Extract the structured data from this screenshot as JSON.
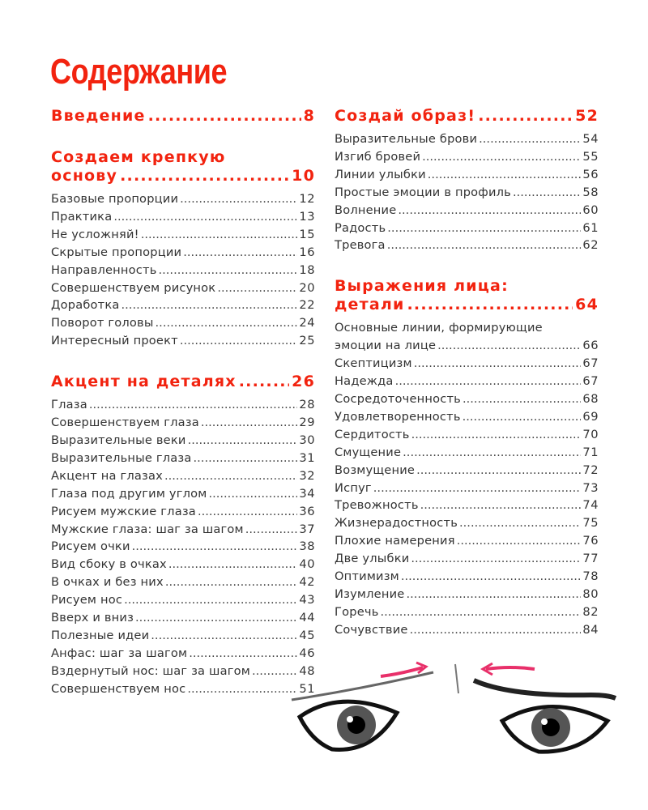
{
  "page_title": "Содержание",
  "left_column": [
    {
      "heading": [
        "Введение"
      ],
      "page": "8",
      "entries": []
    },
    {
      "heading": [
        "Создаем крепкую",
        "основу"
      ],
      "page": "10",
      "entries": [
        {
          "label": "Базовые пропорции",
          "page": "12"
        },
        {
          "label": "Практика",
          "page": "13"
        },
        {
          "label": "Не усложняй!",
          "page": "15"
        },
        {
          "label": "Скрытые пропорции",
          "page": "16"
        },
        {
          "label": "Направленность",
          "page": "18"
        },
        {
          "label": "Совершенствуем рисунок",
          "page": "20"
        },
        {
          "label": "Доработка",
          "page": "22"
        },
        {
          "label": "Поворот головы",
          "page": "24"
        },
        {
          "label": "Интересный проект",
          "page": "25"
        }
      ]
    },
    {
      "heading": [
        "Акцент на деталях"
      ],
      "page": "26",
      "entries": [
        {
          "label": "Глаза",
          "page": "28"
        },
        {
          "label": "Совершенствуем глаза",
          "page": "29"
        },
        {
          "label": "Выразительные веки",
          "page": "30"
        },
        {
          "label": "Выразительные глаза",
          "page": "31"
        },
        {
          "label": "Акцент на глазах",
          "page": "32"
        },
        {
          "label": "Глаза под другим углом",
          "page": "34"
        },
        {
          "label": "Рисуем мужские глаза",
          "page": "36"
        },
        {
          "label": "Мужские глаза: шаг за шагом",
          "page": "37"
        },
        {
          "label": "Рисуем очки",
          "page": "38"
        },
        {
          "label": "Вид сбоку в очках",
          "page": "40"
        },
        {
          "label": "В очках и без них",
          "page": "42"
        },
        {
          "label": "Рисуем нос",
          "page": "43"
        },
        {
          "label": "Вверх и вниз",
          "page": "44"
        },
        {
          "label": "Полезные идеи",
          "page": "45"
        },
        {
          "label": "Анфас: шаг за шагом",
          "page": "46"
        },
        {
          "label": "Вздернутый нос: шаг за шагом",
          "page": "48"
        },
        {
          "label": "Совершенствуем нос",
          "page": "51"
        }
      ]
    }
  ],
  "right_column": [
    {
      "heading": [
        "Создай образ!"
      ],
      "page": "52",
      "entries": [
        {
          "label": "Выразительные брови",
          "page": "54"
        },
        {
          "label": "Изгиб бровей",
          "page": "55"
        },
        {
          "label": "Линии улыбки",
          "page": "56"
        },
        {
          "label": "Простые эмоции в профиль",
          "page": "58"
        },
        {
          "label": "Волнение",
          "page": "60"
        },
        {
          "label": "Радость",
          "page": "61"
        },
        {
          "label": "Тревога",
          "page": "62"
        }
      ]
    },
    {
      "heading": [
        "Выражения лица:",
        "детали"
      ],
      "page": "64",
      "entries": [
        {
          "label": "Основные линии, формирующие",
          "label2": "эмоции на лице",
          "page": "66"
        },
        {
          "label": "Скептицизм",
          "page": "67"
        },
        {
          "label": "Надежда",
          "page": "67"
        },
        {
          "label": "Сосредоточенность",
          "page": "68"
        },
        {
          "label": "Удовлетворенность",
          "page": "69"
        },
        {
          "label": "Сердитость",
          "page": "70"
        },
        {
          "label": "Смущение",
          "page": "71"
        },
        {
          "label": "Возмущение",
          "page": "72"
        },
        {
          "label": "Испуг",
          "page": "73"
        },
        {
          "label": "Тревожность",
          "page": "74"
        },
        {
          "label": "Жизнерадостность",
          "page": "75"
        },
        {
          "label": "Плохие намерения",
          "page": "76"
        },
        {
          "label": "Две улыбки",
          "page": "77"
        },
        {
          "label": "Оптимизм",
          "page": "78"
        },
        {
          "label": "Изумление",
          "page": "80"
        },
        {
          "label": "Горечь",
          "page": "82"
        },
        {
          "label": "Сочувствие",
          "page": "84"
        }
      ]
    }
  ],
  "colors": {
    "accent": "#f2230f",
    "text": "#333333",
    "arrow": "#e8306a"
  },
  "illustration": "eyes-with-eyebrow-arrows"
}
